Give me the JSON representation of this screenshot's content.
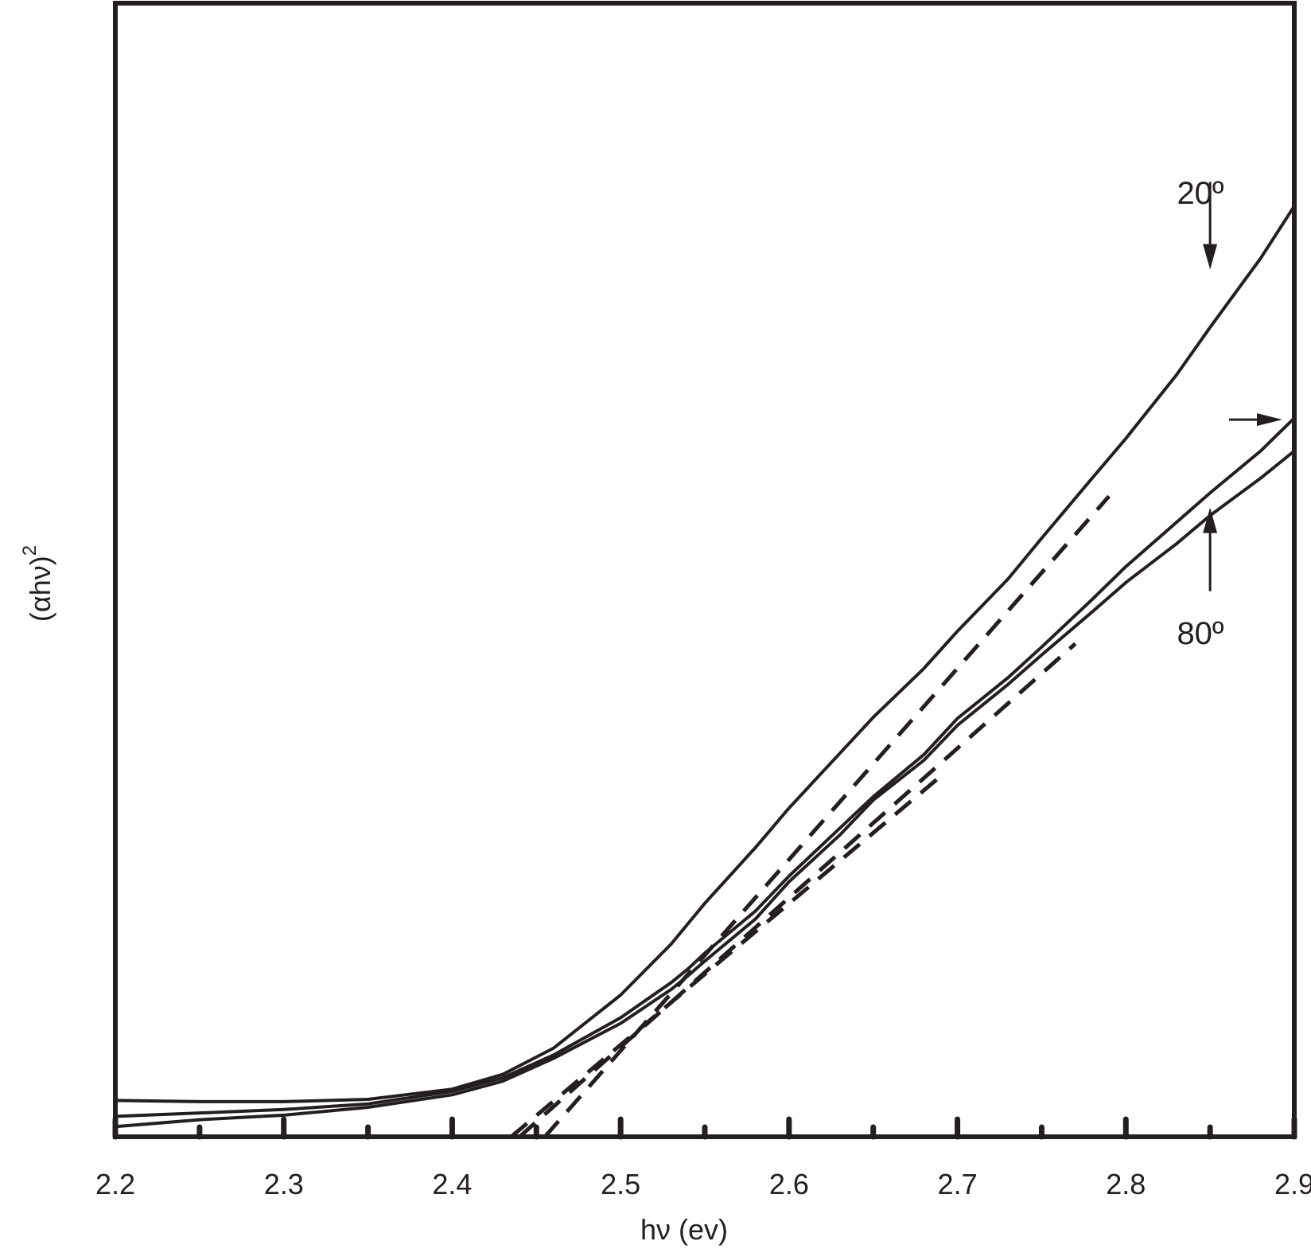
{
  "chart_data": {
    "type": "line",
    "xlabel": "hν (ev)",
    "ylabel": "(αhν)",
    "ylabel_superscript": "2",
    "xlim": [
      2.2,
      2.9
    ],
    "ylim": [
      0,
      1
    ],
    "grid": false,
    "legend": "none",
    "x_ticks": [
      2.2,
      2.25,
      2.3,
      2.35,
      2.4,
      2.45,
      2.5,
      2.55,
      2.6,
      2.65,
      2.7,
      2.75,
      2.8,
      2.85,
      2.9
    ],
    "x_tick_labels": [
      "2.2",
      "2.3",
      "2.4",
      "2.5",
      "2.6",
      "2.7",
      "2.8",
      "2.9"
    ],
    "annotations": [
      {
        "text": "20º",
        "points_to": "top curve",
        "x": 2.85,
        "y": 0.765
      },
      {
        "text": "80º",
        "points_to": "bottom curve",
        "x": 2.85,
        "y": 0.555
      }
    ],
    "series": [
      {
        "style": "solid",
        "x": [
          2.2,
          2.25,
          2.3,
          2.35,
          2.4,
          2.43,
          2.46,
          2.5,
          2.53,
          2.55,
          2.58,
          2.6,
          2.63,
          2.65,
          2.68,
          2.7,
          2.73,
          2.75,
          2.78,
          2.8,
          2.83,
          2.85,
          2.88,
          2.9
        ],
        "y": [
          0.032,
          0.031,
          0.031,
          0.033,
          0.042,
          0.055,
          0.078,
          0.125,
          0.17,
          0.206,
          0.255,
          0.29,
          0.338,
          0.37,
          0.413,
          0.446,
          0.492,
          0.528,
          0.581,
          0.616,
          0.672,
          0.714,
          0.775,
          0.821
        ]
      },
      {
        "style": "solid",
        "x": [
          2.2,
          2.25,
          2.3,
          2.35,
          2.4,
          2.43,
          2.46,
          2.5,
          2.53,
          2.54,
          2.55,
          2.58,
          2.6,
          2.63,
          2.65,
          2.68,
          2.7,
          2.73,
          2.75,
          2.78,
          2.8,
          2.83,
          2.85,
          2.88,
          2.9
        ],
        "y": [
          0.018,
          0.021,
          0.024,
          0.029,
          0.04,
          0.052,
          0.072,
          0.105,
          0.136,
          0.148,
          0.162,
          0.199,
          0.23,
          0.272,
          0.3,
          0.337,
          0.369,
          0.405,
          0.432,
          0.474,
          0.503,
          0.542,
          0.568,
          0.605,
          0.634
        ]
      },
      {
        "style": "solid",
        "x": [
          2.2,
          2.25,
          2.3,
          2.35,
          2.4,
          2.43,
          2.46,
          2.5,
          2.53,
          2.54,
          2.55,
          2.58,
          2.6,
          2.63,
          2.65,
          2.68,
          2.7,
          2.73,
          2.75,
          2.78,
          2.8,
          2.83,
          2.85,
          2.88,
          2.9
        ],
        "y": [
          0.009,
          0.015,
          0.019,
          0.026,
          0.037,
          0.049,
          0.069,
          0.1,
          0.13,
          0.142,
          0.155,
          0.192,
          0.225,
          0.266,
          0.297,
          0.332,
          0.363,
          0.399,
          0.425,
          0.463,
          0.489,
          0.523,
          0.548,
          0.581,
          0.605
        ]
      },
      {
        "style": "dashed",
        "x": [
          2.455,
          2.79
        ],
        "y": [
          0.0,
          0.565
        ]
      },
      {
        "style": "dashed",
        "x": [
          2.44,
          2.77
        ],
        "y": [
          0.0,
          0.435
        ]
      },
      {
        "style": "dashed",
        "x": [
          2.435,
          2.69
        ],
        "y": [
          0.0,
          0.318
        ]
      }
    ]
  }
}
